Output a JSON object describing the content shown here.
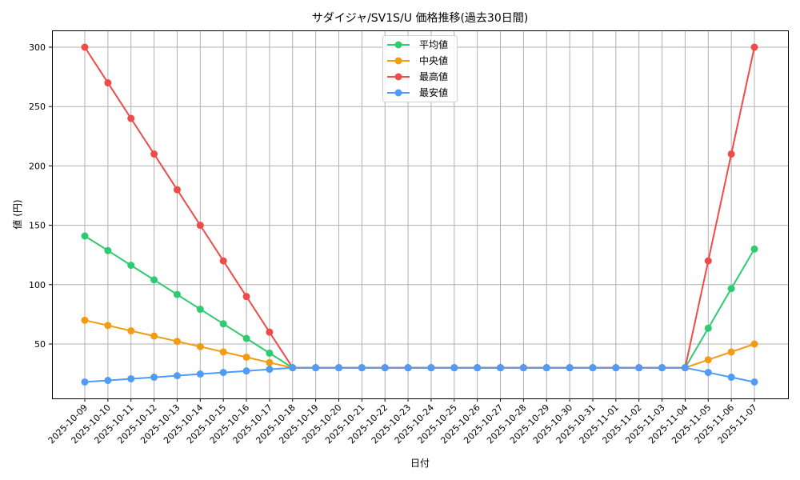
{
  "chart_data": {
    "type": "line",
    "title": "サダイジャ/SV1S/U 価格推移(過去30日間)",
    "xlabel": "日付",
    "ylabel": "値 (円)",
    "ylim": [
      8,
      310
    ],
    "yticks": [
      50,
      100,
      150,
      200,
      250,
      300
    ],
    "grid": true,
    "legend_position": "upper center",
    "categories": [
      "2025-10-09",
      "2025-10-10",
      "2025-10-11",
      "2025-10-12",
      "2025-10-13",
      "2025-10-14",
      "2025-10-15",
      "2025-10-16",
      "2025-10-17",
      "2025-10-18",
      "2025-10-19",
      "2025-10-20",
      "2025-10-21",
      "2025-10-22",
      "2025-10-23",
      "2025-10-24",
      "2025-10-25",
      "2025-10-26",
      "2025-10-27",
      "2025-10-28",
      "2025-10-29",
      "2025-10-30",
      "2025-10-31",
      "2025-11-01",
      "2025-11-02",
      "2025-11-03",
      "2025-11-04",
      "2025-11-05",
      "2025-11-06",
      "2025-11-07"
    ],
    "series": [
      {
        "name": "平均値",
        "color": "#2ecc71",
        "values": [
          141,
          128.7,
          116.3,
          104,
          91.7,
          79.3,
          67,
          54.7,
          42.3,
          30,
          30,
          30,
          30,
          30,
          30,
          30,
          30,
          30,
          30,
          30,
          30,
          30,
          30,
          30,
          30,
          30,
          30,
          63.3,
          96.7,
          130
        ]
      },
      {
        "name": "中央値",
        "color": "#f39c12",
        "values": [
          70,
          65.6,
          61.1,
          56.7,
          52.2,
          47.8,
          43.3,
          38.9,
          34.4,
          30,
          30,
          30,
          30,
          30,
          30,
          30,
          30,
          30,
          30,
          30,
          30,
          30,
          30,
          30,
          30,
          30,
          30,
          36.7,
          43.3,
          50
        ]
      },
      {
        "name": "最高値",
        "color": "#ef4b4b",
        "values": [
          300,
          270,
          240,
          210,
          180,
          150,
          120,
          90,
          60,
          30,
          30,
          30,
          30,
          30,
          30,
          30,
          30,
          30,
          30,
          30,
          30,
          30,
          30,
          30,
          30,
          30,
          30,
          120,
          210,
          300
        ]
      },
      {
        "name": "最安値",
        "color": "#4f9cf7",
        "values": [
          18,
          19.3,
          20.7,
          22,
          23.3,
          24.7,
          26,
          27.3,
          28.7,
          30,
          30,
          30,
          30,
          30,
          30,
          30,
          30,
          30,
          30,
          30,
          30,
          30,
          30,
          30,
          30,
          30,
          30,
          26,
          22,
          18
        ]
      }
    ]
  }
}
